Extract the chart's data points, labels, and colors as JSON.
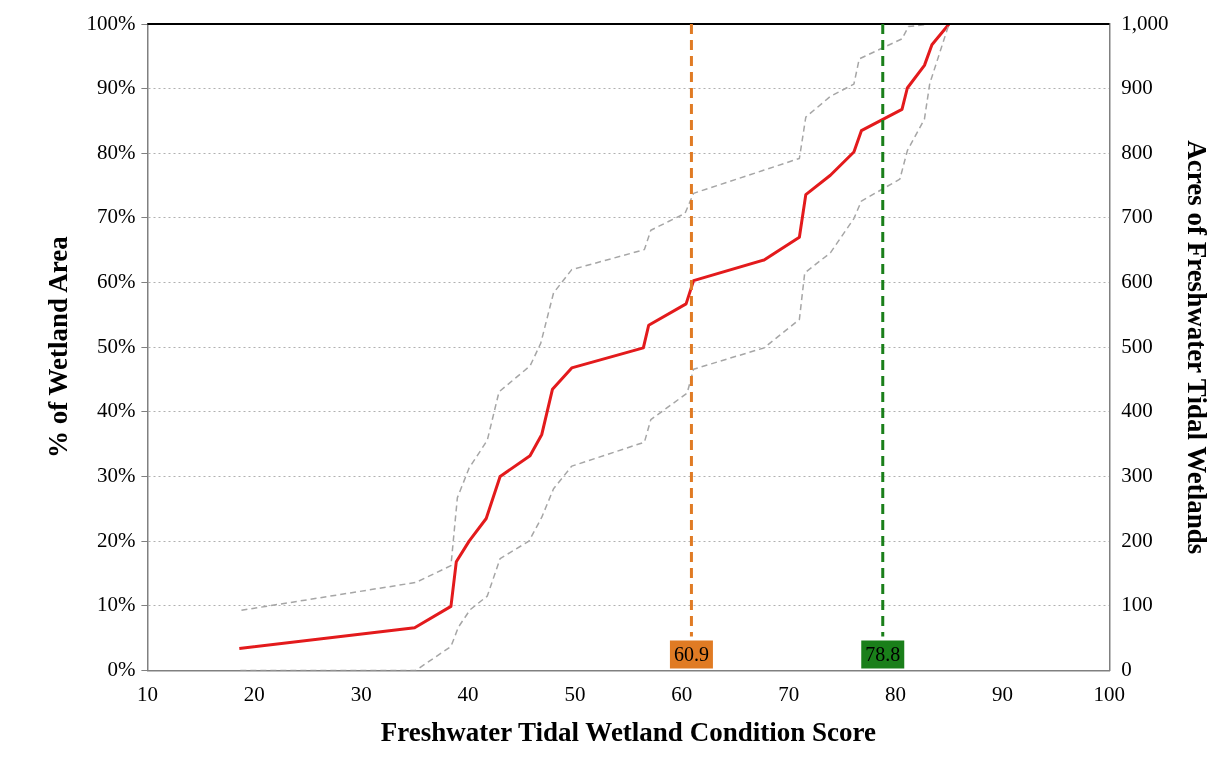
{
  "chart_data": {
    "type": "line",
    "xlabel": "Freshwater Tidal Wetland Condition Score",
    "ylabel": "% of Wetland Area",
    "y2label": "Acres of Freshwater Tidal Wetlands",
    "xlim": [
      10,
      100
    ],
    "xticks": [
      10,
      20,
      30,
      40,
      50,
      60,
      70,
      80,
      90,
      100
    ],
    "ylim": [
      0,
      100
    ],
    "yticks": [
      {
        "value": 0,
        "label": "0%"
      },
      {
        "value": 10,
        "label": "10%"
      },
      {
        "value": 20,
        "label": "20%"
      },
      {
        "value": 30,
        "label": "30%"
      },
      {
        "value": 40,
        "label": "40%"
      },
      {
        "value": 50,
        "label": "50%"
      },
      {
        "value": 60,
        "label": "60%"
      },
      {
        "value": 70,
        "label": "70%"
      },
      {
        "value": 80,
        "label": "80%"
      },
      {
        "value": 90,
        "label": "90%"
      },
      {
        "value": 100,
        "label": "100%"
      }
    ],
    "y2lim": [
      0,
      1000
    ],
    "y2ticks": [
      0,
      100,
      200,
      300,
      400,
      500,
      600,
      700,
      800,
      900,
      {
        "value": 1000,
        "label": "1,000"
      }
    ],
    "grid": "y",
    "legend": false,
    "marker": "none",
    "series": [
      {
        "color": "#a6a6a6",
        "line_style": "dashed",
        "x": [
          18.8,
          35.1,
          38.4,
          39.0,
          40.1,
          41.8,
          42.9,
          45.8,
          46.8,
          48.0,
          49.7,
          56.5,
          57.1,
          60.3,
          61.1,
          67.7,
          71.0,
          71.6,
          73.9,
          76.1,
          76.6,
          80.6,
          81.2,
          83.2,
          85.0
        ],
        "values": [
          9.3,
          13.6,
          16.2,
          26.7,
          31.3,
          35.6,
          43.1,
          47.1,
          50.6,
          58.4,
          62.0,
          65.1,
          68.1,
          70.7,
          73.8,
          77.4,
          79.2,
          85.6,
          88.8,
          90.7,
          94.6,
          97.7,
          99.6,
          100,
          100
        ]
      },
      {
        "color": "#a6a6a6",
        "line_style": "dashed",
        "x": [
          18.7,
          35.1,
          38.4,
          39.1,
          40.2,
          41.8,
          43.0,
          45.7,
          46.9,
          48.0,
          49.7,
          56.5,
          57.1,
          60.5,
          61.1,
          67.7,
          71.0,
          71.5,
          73.9,
          76.1,
          76.8,
          80.4,
          81.1,
          82.7,
          83.2,
          85.0
        ],
        "values": [
          0,
          0,
          3.7,
          6.7,
          9.4,
          11.5,
          17.3,
          20.0,
          23.7,
          28.1,
          31.6,
          35.3,
          38.8,
          42.9,
          46.6,
          49.9,
          54.3,
          61.5,
          64.6,
          69.9,
          72.6,
          76.0,
          80.4,
          85.3,
          90.8,
          100
        ]
      },
      {
        "color": "#e31a1c",
        "line_style": "solid",
        "x": [
          18.6,
          35.0,
          38.4,
          38.9,
          40.1,
          41.7,
          43.0,
          45.8,
          46.9,
          47.9,
          49.7,
          56.4,
          56.9,
          60.4,
          61.1,
          67.7,
          71.0,
          71.6,
          73.9,
          76.1,
          76.8,
          80.6,
          81.1,
          82.7,
          83.4,
          85.0
        ],
        "values": [
          3.4,
          6.6,
          9.9,
          16.8,
          20.0,
          23.5,
          30.0,
          33.2,
          36.5,
          43.5,
          46.8,
          49.9,
          53.4,
          56.7,
          60.3,
          63.5,
          67.0,
          73.6,
          76.6,
          80.2,
          83.5,
          86.8,
          90.1,
          93.6,
          96.8,
          100
        ]
      }
    ],
    "ref_lines": [
      {
        "axis": "x",
        "value": 60.9,
        "label": "60.9",
        "color": "#e07b24",
        "line_style": "dashed"
      },
      {
        "axis": "x",
        "value": 78.8,
        "label": "78.8",
        "color": "#1a7f1a",
        "line_style": "dashed"
      }
    ]
  }
}
